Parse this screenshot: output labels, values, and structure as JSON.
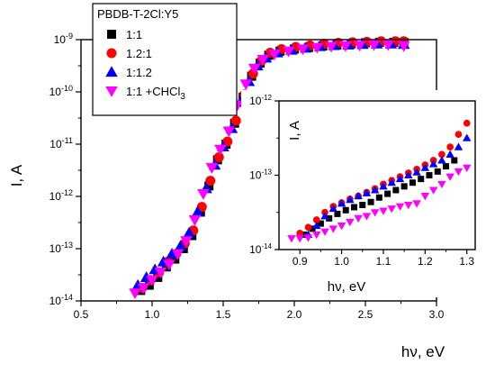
{
  "chart_data": [
    {
      "id": "main",
      "type": "scatter",
      "xlabel": "hν, eV",
      "ylabel": "I, A",
      "xlim": [
        0.5,
        3.0
      ],
      "ylim_log10": [
        -14,
        -9
      ],
      "y_scale": "log",
      "x_ticks": [
        "0.5",
        "1.0",
        "1.5",
        "2.0",
        "2.5",
        "3.0"
      ],
      "y_ticks": [
        {
          "base": "10",
          "exp": "-14"
        },
        {
          "base": "10",
          "exp": "-13"
        },
        {
          "base": "10",
          "exp": "-12"
        },
        {
          "base": "10",
          "exp": "-11"
        },
        {
          "base": "10",
          "exp": "-10"
        },
        {
          "base": "10",
          "exp": "-9"
        }
      ],
      "legend": {
        "title": "PBDB-T-2Cl:Y5",
        "placement": "top-left",
        "entries": [
          {
            "label": "1:1",
            "subscript": "",
            "marker": "square",
            "color": "#000000"
          },
          {
            "label": "1.2:1",
            "subscript": "",
            "marker": "circle",
            "color": "#ff0000"
          },
          {
            "label": "1:1.2",
            "subscript": "",
            "marker": "triangle-up",
            "color": "#0000ff"
          },
          {
            "label": "1:1 +CHCl",
            "subscript": "3",
            "marker": "triangle-down",
            "color": "#ff00ff"
          }
        ]
      },
      "series": [
        {
          "name": "1:1",
          "marker": "square",
          "color": "#000000",
          "x": [
            0.92,
            0.98,
            1.04,
            1.1,
            1.16,
            1.22,
            1.28,
            1.34,
            1.4,
            1.46,
            1.52,
            1.58,
            1.64,
            1.7,
            1.76,
            1.82,
            1.9,
            2.0,
            2.1,
            2.2,
            2.3,
            2.4,
            2.5,
            2.6,
            2.7,
            2.77
          ],
          "y_log10": [
            -13.8,
            -13.7,
            -13.55,
            -13.35,
            -13.2,
            -13.0,
            -12.75,
            -12.3,
            -11.8,
            -11.3,
            -11.0,
            -10.6,
            -10.1,
            -9.7,
            -9.45,
            -9.3,
            -9.22,
            -9.18,
            -9.15,
            -9.12,
            -9.1,
            -9.08,
            -9.06,
            -9.05,
            -9.05,
            -9.05
          ]
        },
        {
          "name": "1.2:1",
          "marker": "circle",
          "color": "#ff0000",
          "x": [
            0.93,
            0.99,
            1.05,
            1.11,
            1.17,
            1.23,
            1.29,
            1.35,
            1.41,
            1.47,
            1.53,
            1.59,
            1.65,
            1.71,
            1.77,
            1.83,
            1.91,
            2.01,
            2.11,
            2.21,
            2.31,
            2.41,
            2.51,
            2.61,
            2.71,
            2.77
          ],
          "y_log10": [
            -13.75,
            -13.6,
            -13.45,
            -13.25,
            -13.1,
            -12.9,
            -12.65,
            -12.2,
            -11.7,
            -11.25,
            -10.95,
            -10.55,
            -10.05,
            -9.65,
            -9.4,
            -9.25,
            -9.18,
            -9.14,
            -9.11,
            -9.08,
            -9.06,
            -9.05,
            -9.04,
            -9.03,
            -9.03,
            -9.03
          ]
        },
        {
          "name": "1:1.2",
          "marker": "triangle-up",
          "color": "#0000ff",
          "x": [
            0.9,
            0.96,
            1.02,
            1.08,
            1.14,
            1.2,
            1.26,
            1.32,
            1.38,
            1.44,
            1.5,
            1.56,
            1.62,
            1.68,
            1.74,
            1.8,
            1.88,
            1.98,
            2.08,
            2.18,
            2.28,
            2.38,
            2.48,
            2.58,
            2.68,
            2.77
          ],
          "y_log10": [
            -13.7,
            -13.55,
            -13.4,
            -13.25,
            -13.1,
            -12.95,
            -12.7,
            -12.3,
            -11.85,
            -11.4,
            -11.05,
            -10.7,
            -10.2,
            -9.8,
            -9.5,
            -9.35,
            -9.25,
            -9.2,
            -9.16,
            -9.13,
            -9.11,
            -9.1,
            -9.09,
            -9.08,
            -9.08,
            -9.09
          ]
        },
        {
          "name": "1:1 +CHCl3",
          "marker": "triangle-down",
          "color": "#ff00ff",
          "x": [
            0.88,
            0.94,
            1.0,
            1.06,
            1.12,
            1.18,
            1.24,
            1.3,
            1.36,
            1.42,
            1.48,
            1.54,
            1.6,
            1.66,
            1.72,
            1.78,
            1.86,
            1.96,
            2.06,
            2.16,
            2.26,
            2.36,
            2.46,
            2.56,
            2.66,
            2.77
          ],
          "y_log10": [
            -13.85,
            -13.75,
            -13.6,
            -13.45,
            -13.3,
            -13.1,
            -12.85,
            -12.45,
            -11.95,
            -11.45,
            -11.1,
            -10.75,
            -10.25,
            -9.85,
            -9.55,
            -9.38,
            -9.28,
            -9.22,
            -9.18,
            -9.15,
            -9.13,
            -9.12,
            -9.11,
            -9.1,
            -9.1,
            -9.12
          ]
        }
      ]
    },
    {
      "id": "inset",
      "type": "scatter",
      "xlabel": "hν, eV",
      "ylabel": "I, A",
      "xlim": [
        0.85,
        1.32
      ],
      "ylim_log10": [
        -14,
        -12
      ],
      "y_scale": "log",
      "x_ticks": [
        "0.9",
        "1.0",
        "1.1",
        "1.2",
        "1.3"
      ],
      "y_ticks": [
        {
          "base": "10",
          "exp": "-14"
        },
        {
          "base": "10",
          "exp": "-13"
        },
        {
          "base": "10",
          "exp": "-12"
        }
      ],
      "series": [
        {
          "name": "1:1",
          "marker": "square",
          "color": "#000000",
          "x": [
            0.91,
            0.93,
            0.95,
            0.97,
            0.99,
            1.01,
            1.03,
            1.05,
            1.07,
            1.09,
            1.11,
            1.13,
            1.15,
            1.17,
            1.19,
            1.21,
            1.23,
            1.25,
            1.27
          ],
          "y_log10": [
            -13.8,
            -13.72,
            -13.65,
            -13.58,
            -13.52,
            -13.47,
            -13.43,
            -13.4,
            -13.36,
            -13.3,
            -13.25,
            -13.2,
            -13.15,
            -13.1,
            -13.05,
            -13.0,
            -12.95,
            -12.88,
            -12.8
          ]
        },
        {
          "name": "1.2:1",
          "marker": "circle",
          "color": "#ff0000",
          "x": [
            0.9,
            0.92,
            0.94,
            0.96,
            0.98,
            1.0,
            1.02,
            1.04,
            1.06,
            1.08,
            1.1,
            1.12,
            1.14,
            1.16,
            1.18,
            1.2,
            1.22,
            1.24,
            1.26,
            1.28,
            1.3
          ],
          "y_log10": [
            -13.78,
            -13.7,
            -13.6,
            -13.5,
            -13.42,
            -13.37,
            -13.32,
            -13.28,
            -13.23,
            -13.18,
            -13.12,
            -13.07,
            -13.02,
            -12.97,
            -12.92,
            -12.86,
            -12.8,
            -12.72,
            -12.62,
            -12.45,
            -12.3
          ]
        },
        {
          "name": "1:1.2",
          "marker": "triangle-up",
          "color": "#0000ff",
          "x": [
            0.92,
            0.94,
            0.96,
            0.98,
            1.0,
            1.02,
            1.04,
            1.06,
            1.08,
            1.1,
            1.12,
            1.14,
            1.16,
            1.18,
            1.2,
            1.22,
            1.24,
            1.26,
            1.28,
            1.3
          ],
          "y_log10": [
            -13.8,
            -13.68,
            -13.55,
            -13.45,
            -13.38,
            -13.33,
            -13.28,
            -13.24,
            -13.2,
            -13.15,
            -13.1,
            -13.05,
            -13.0,
            -12.96,
            -12.9,
            -12.85,
            -12.8,
            -12.72,
            -12.62,
            -12.5
          ]
        },
        {
          "name": "1:1 +CHCl3",
          "marker": "triangle-down",
          "color": "#ff00ff",
          "x": [
            0.88,
            0.9,
            0.92,
            0.94,
            0.96,
            0.98,
            1.0,
            1.02,
            1.04,
            1.06,
            1.08,
            1.1,
            1.12,
            1.14,
            1.16,
            1.18,
            1.2,
            1.22,
            1.24,
            1.26,
            1.28,
            1.3
          ],
          "y_log10": [
            -13.85,
            -13.85,
            -13.84,
            -13.8,
            -13.76,
            -13.72,
            -13.68,
            -13.63,
            -13.58,
            -13.55,
            -13.5,
            -13.48,
            -13.45,
            -13.42,
            -13.4,
            -13.38,
            -13.28,
            -13.2,
            -13.12,
            -13.02,
            -12.95,
            -12.9
          ]
        }
      ]
    }
  ]
}
